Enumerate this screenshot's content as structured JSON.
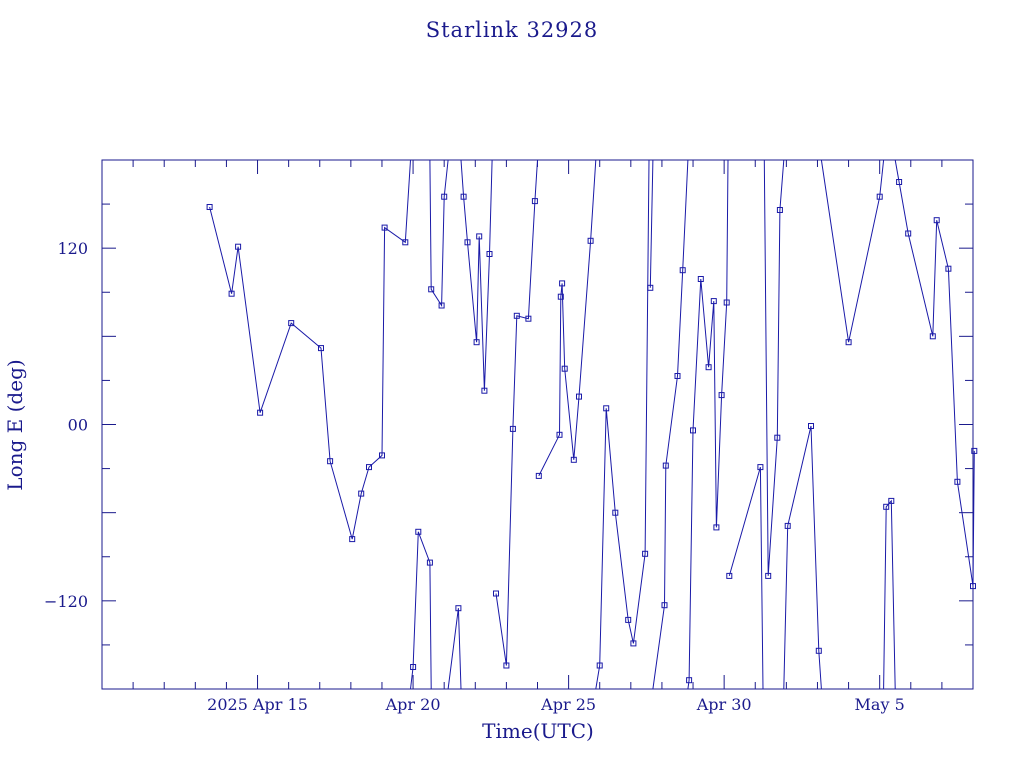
{
  "chart_data": {
    "type": "scatter",
    "title": "Starlink 32928",
    "xlabel": "Time(UTC)",
    "ylabel": "Long E (deg)",
    "x_unit": "date",
    "xlim": [
      "2025-04-10T00:00",
      "2025-05-08T00:00"
    ],
    "ylim": [
      -180,
      180
    ],
    "y_wrap": [
      -180,
      180
    ],
    "x_ticks": [
      {
        "x": "2025-04-15T00:00",
        "label": "2025 Apr 15"
      },
      {
        "x": "2025-04-20T00:00",
        "label": "Apr 20"
      },
      {
        "x": "2025-04-25T00:00",
        "label": "Apr 25"
      },
      {
        "x": "2025-04-30T00:00",
        "label": "Apr 30"
      },
      {
        "x": "2025-05-05T00:00",
        "label": "May  5"
      }
    ],
    "y_ticks": [
      {
        "y": 120,
        "label": "120"
      },
      {
        "y": 0,
        "label": "00"
      },
      {
        "y": -120,
        "label": "−120"
      }
    ],
    "grid": false,
    "marker": "square",
    "connected": true,
    "colors": {
      "axis": "#1a1a8c",
      "series": "#1a1aa8"
    },
    "series": [
      {
        "points": [
          {
            "x": "2025-04-13T11:00",
            "y": 148
          },
          {
            "x": "2025-04-14T04:00",
            "y": 89
          },
          {
            "x": "2025-04-14T09:00",
            "y": 121
          },
          {
            "x": "2025-04-15T02:00",
            "y": 8
          },
          {
            "x": "2025-04-16T02:00",
            "y": 69
          },
          {
            "x": "2025-04-17T01:00",
            "y": 52
          },
          {
            "x": "2025-04-17T08:00",
            "y": -25
          },
          {
            "x": "2025-04-18T01:00",
            "y": -78
          },
          {
            "x": "2025-04-18T08:00",
            "y": -47
          },
          {
            "x": "2025-04-18T14:00",
            "y": -29
          },
          {
            "x": "2025-04-19T00:00",
            "y": -21
          },
          {
            "x": "2025-04-19T02:00",
            "y": 134
          },
          {
            "x": "2025-04-19T18:00",
            "y": 124
          },
          {
            "x": "2025-04-19T22:00",
            "y": 180,
            "break_after": true
          },
          {
            "x": "2025-04-19T22:00",
            "y": -180
          },
          {
            "x": "2025-04-20T00:00",
            "y": -165
          },
          {
            "x": "2025-04-20T04:00",
            "y": -73
          },
          {
            "x": "2025-04-20T13:00",
            "y": -94
          },
          {
            "x": "2025-04-20T14:00",
            "y": -180,
            "break_after": true
          },
          {
            "x": "2025-04-20T13:00",
            "y": 180
          },
          {
            "x": "2025-04-20T14:00",
            "y": 92
          },
          {
            "x": "2025-04-20T22:00",
            "y": 81
          },
          {
            "x": "2025-04-21T00:00",
            "y": 155
          },
          {
            "x": "2025-04-21T03:00",
            "y": 180,
            "break_after": true
          },
          {
            "x": "2025-04-21T03:00",
            "y": -180
          },
          {
            "x": "2025-04-21T11:00",
            "y": -125
          },
          {
            "x": "2025-04-21T13:00",
            "y": -180,
            "break_after": true
          },
          {
            "x": "2025-04-21T13:00",
            "y": 180
          },
          {
            "x": "2025-04-21T15:00",
            "y": 155
          },
          {
            "x": "2025-04-21T18:00",
            "y": 124
          },
          {
            "x": "2025-04-22T01:00",
            "y": 56
          },
          {
            "x": "2025-04-22T03:00",
            "y": 128
          },
          {
            "x": "2025-04-22T07:00",
            "y": 23
          },
          {
            "x": "2025-04-22T11:00",
            "y": 116
          },
          {
            "x": "2025-04-22T13:00",
            "y": 180,
            "break_after": true
          },
          {
            "x": "2025-04-22T16:00",
            "y": -115
          },
          {
            "x": "2025-04-23T00:00",
            "y": -164
          },
          {
            "x": "2025-04-23T05:00",
            "y": -3
          },
          {
            "x": "2025-04-23T08:00",
            "y": 74
          },
          {
            "x": "2025-04-23T17:00",
            "y": 72
          },
          {
            "x": "2025-04-23T22:00",
            "y": 152
          },
          {
            "x": "2025-04-24T00:00",
            "y": 180,
            "break_after": true
          },
          {
            "x": "2025-04-24T01:00",
            "y": -35
          },
          {
            "x": "2025-04-24T17:00",
            "y": -7
          },
          {
            "x": "2025-04-24T18:00",
            "y": 87
          },
          {
            "x": "2025-04-24T19:00",
            "y": 96
          },
          {
            "x": "2025-04-24T21:00",
            "y": 38
          },
          {
            "x": "2025-04-25T04:00",
            "y": -24
          },
          {
            "x": "2025-04-25T08:00",
            "y": 19
          },
          {
            "x": "2025-04-25T17:00",
            "y": 125
          },
          {
            "x": "2025-04-25T21:00",
            "y": 180,
            "break_after": true
          },
          {
            "x": "2025-04-25T21:00",
            "y": -180
          },
          {
            "x": "2025-04-26T00:00",
            "y": -164
          },
          {
            "x": "2025-04-26T05:00",
            "y": 11
          },
          {
            "x": "2025-04-26T12:00",
            "y": -60
          },
          {
            "x": "2025-04-26T22:00",
            "y": -133
          },
          {
            "x": "2025-04-27T02:00",
            "y": -149
          },
          {
            "x": "2025-04-27T11:00",
            "y": -88
          },
          {
            "x": "2025-04-27T14:00",
            "y": 180,
            "break_after": true
          },
          {
            "x": "2025-04-27T15:00",
            "y": 93
          },
          {
            "x": "2025-04-27T17:00",
            "y": 180,
            "break_after": true
          },
          {
            "x": "2025-04-27T17:00",
            "y": -180
          },
          {
            "x": "2025-04-28T02:00",
            "y": -123
          },
          {
            "x": "2025-04-28T03:00",
            "y": -28
          },
          {
            "x": "2025-04-28T12:00",
            "y": 33
          },
          {
            "x": "2025-04-28T16:00",
            "y": 105
          },
          {
            "x": "2025-04-28T20:00",
            "y": 180,
            "break_after": true
          },
          {
            "x": "2025-04-28T20:00",
            "y": -180
          },
          {
            "x": "2025-04-28T21:00",
            "y": -174
          },
          {
            "x": "2025-04-29T00:00",
            "y": -4
          },
          {
            "x": "2025-04-29T06:00",
            "y": 99
          },
          {
            "x": "2025-04-29T12:00",
            "y": 39
          },
          {
            "x": "2025-04-29T16:00",
            "y": 84
          },
          {
            "x": "2025-04-29T18:00",
            "y": -70
          },
          {
            "x": "2025-04-29T22:00",
            "y": 20
          },
          {
            "x": "2025-04-30T02:00",
            "y": 83
          },
          {
            "x": "2025-04-30T03:00",
            "y": 180,
            "break_after": true
          },
          {
            "x": "2025-04-30T04:00",
            "y": -103
          },
          {
            "x": "2025-05-01T04:00",
            "y": -29
          },
          {
            "x": "2025-05-01T06:00",
            "y": -180,
            "break_after": true
          },
          {
            "x": "2025-05-01T07:00",
            "y": 180
          },
          {
            "x": "2025-05-01T10:00",
            "y": -103
          },
          {
            "x": "2025-05-01T17:00",
            "y": -9
          },
          {
            "x": "2025-05-01T19:00",
            "y": 146
          },
          {
            "x": "2025-05-01T22:00",
            "y": 180,
            "break_after": true
          },
          {
            "x": "2025-05-01T22:00",
            "y": -180
          },
          {
            "x": "2025-05-02T01:00",
            "y": -69
          },
          {
            "x": "2025-05-02T19:00",
            "y": -1
          },
          {
            "x": "2025-05-03T01:00",
            "y": -154
          },
          {
            "x": "2025-05-03T03:00",
            "y": -180,
            "break_after": true
          },
          {
            "x": "2025-05-03T03:00",
            "y": 180
          },
          {
            "x": "2025-05-04T00:00",
            "y": 56
          },
          {
            "x": "2025-05-05T00:00",
            "y": 155
          },
          {
            "x": "2025-05-05T03:00",
            "y": 180,
            "break_after": true
          },
          {
            "x": "2025-05-05T03:00",
            "y": -180
          },
          {
            "x": "2025-05-05T05:00",
            "y": -56
          },
          {
            "x": "2025-05-05T09:00",
            "y": -52
          },
          {
            "x": "2025-05-05T12:00",
            "y": -180,
            "break_after": true
          },
          {
            "x": "2025-05-05T12:00",
            "y": 180
          },
          {
            "x": "2025-05-05T15:00",
            "y": 165
          },
          {
            "x": "2025-05-05T22:00",
            "y": 130
          },
          {
            "x": "2025-05-06T17:00",
            "y": 60
          },
          {
            "x": "2025-05-06T20:00",
            "y": 139
          },
          {
            "x": "2025-05-07T05:00",
            "y": 106
          },
          {
            "x": "2025-05-07T12:00",
            "y": -39
          },
          {
            "x": "2025-05-08T00:00",
            "y": -110
          },
          {
            "x": "2025-05-08T01:00",
            "y": -18
          }
        ]
      }
    ]
  }
}
